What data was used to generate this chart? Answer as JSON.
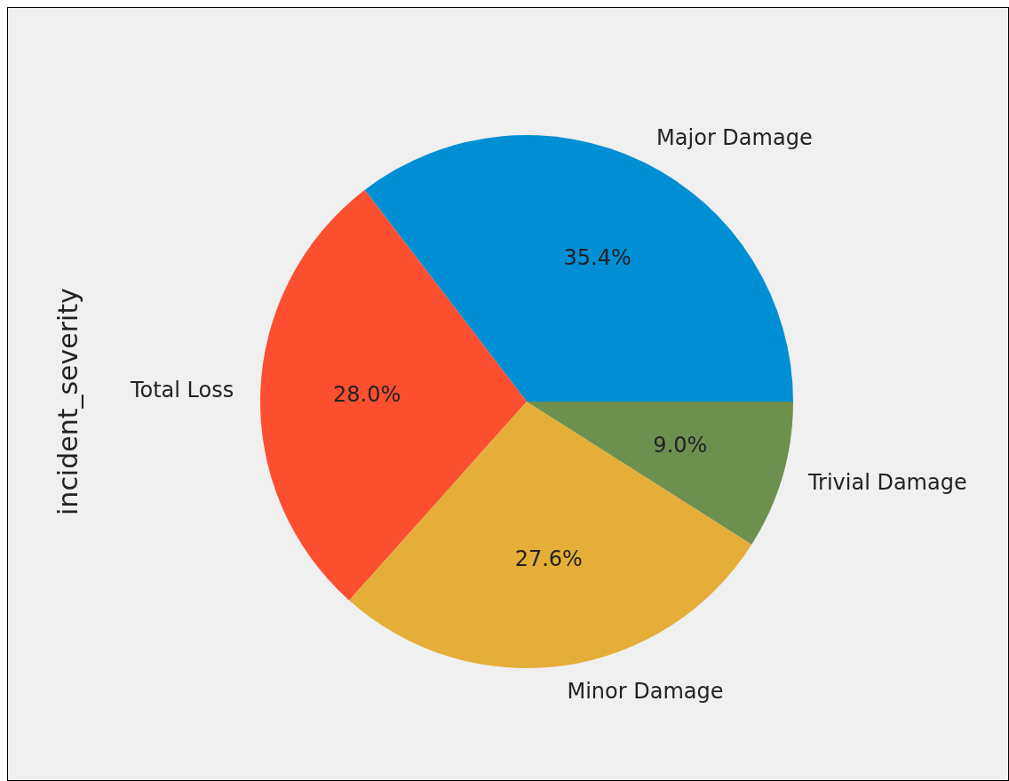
{
  "chart_data": {
    "type": "pie",
    "ylabel": "incident_severity",
    "categories": [
      "Major Damage",
      "Total Loss",
      "Minor Damage",
      "Trivial Damage"
    ],
    "values": [
      35.4,
      28.0,
      27.6,
      9.0
    ],
    "colors": [
      "#008fd5",
      "#fc4f30",
      "#e5ae38",
      "#6d904f"
    ],
    "value_labels": [
      "35.4%",
      "28.0%",
      "27.6%",
      "9.0%"
    ]
  }
}
